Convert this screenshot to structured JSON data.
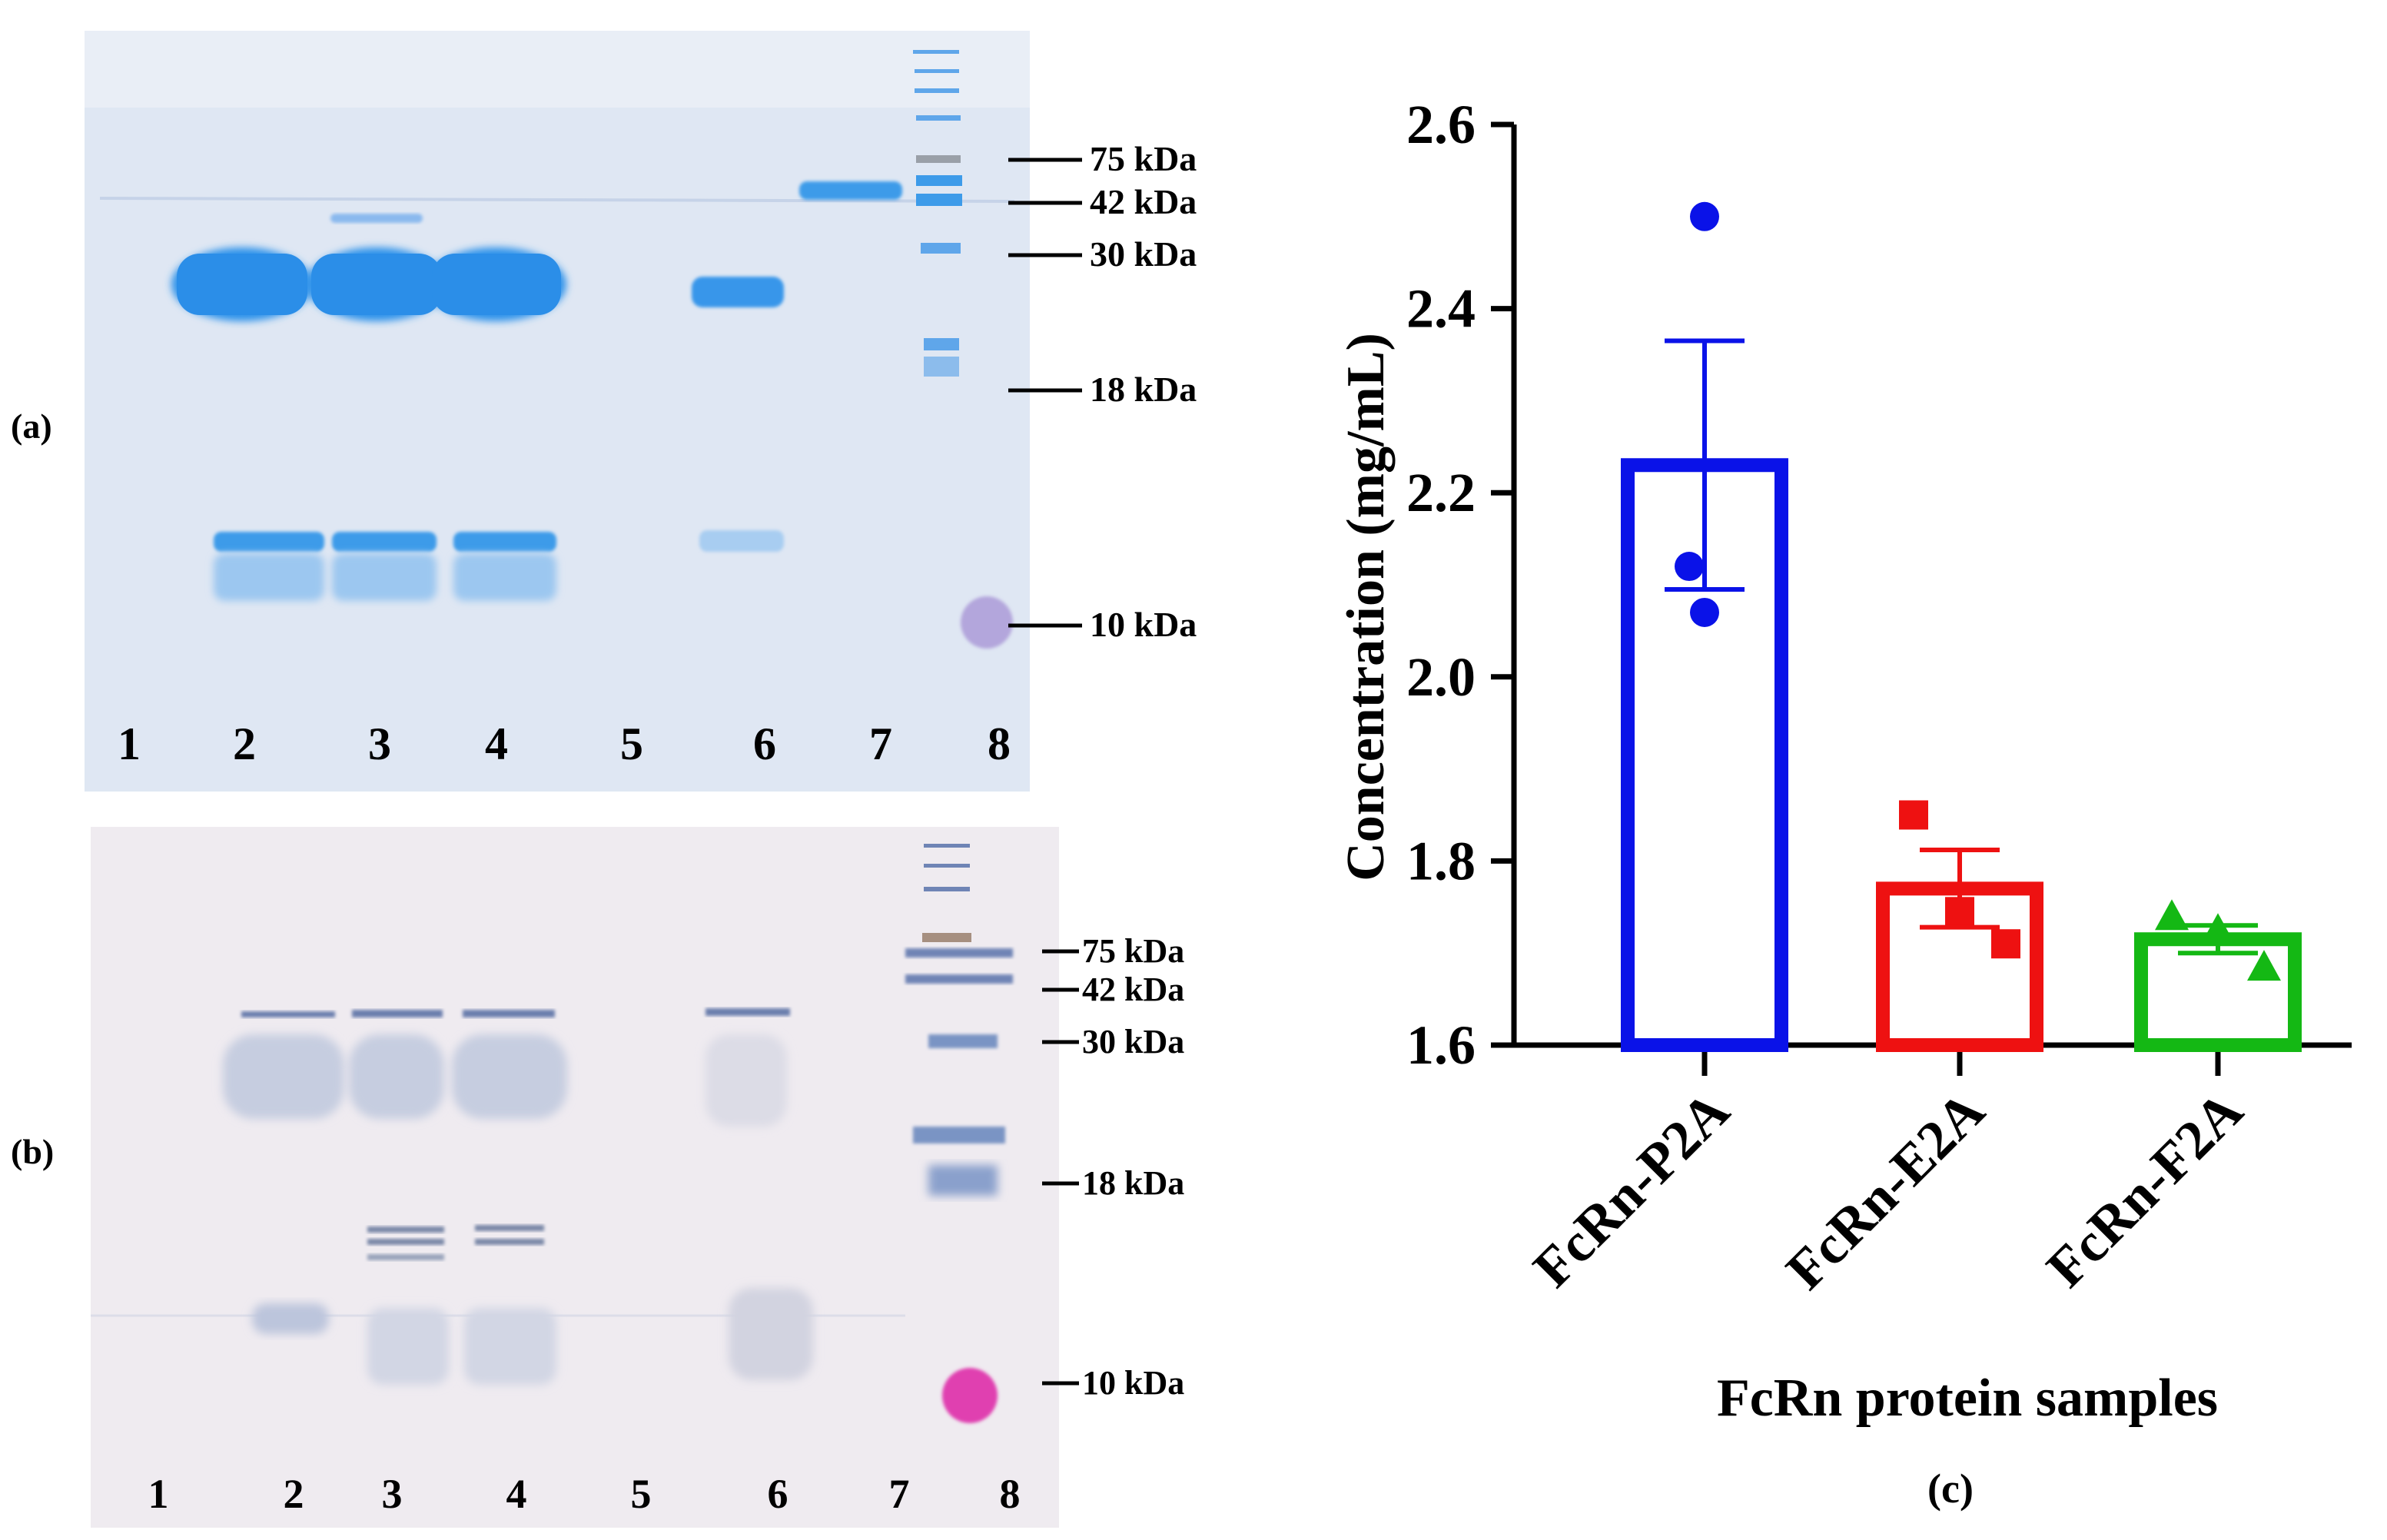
{
  "panel_a": {
    "tag": "(a)",
    "lanes": [
      "1",
      "2",
      "3",
      "4",
      "5",
      "6",
      "7",
      "8"
    ],
    "markers": [
      "75 kDa",
      "42 kDa",
      "30 kDa",
      "18 kDa",
      "10 kDa"
    ]
  },
  "panel_b": {
    "tag": "(b)",
    "lanes": [
      "1",
      "2",
      "3",
      "4",
      "5",
      "6",
      "7",
      "8"
    ],
    "markers": [
      "75 kDa",
      "42 kDa",
      "30 kDa",
      "18 kDa",
      "10 kDa"
    ]
  },
  "panel_c": {
    "tag": "(c)"
  },
  "colors": {
    "gel_a_bg": "#dfe7f3",
    "gel_b_bg": "#efebf0",
    "blue": "#0a12e8",
    "red": "#ee1111",
    "green": "#14b814"
  },
  "chart_data": {
    "type": "bar",
    "title": "",
    "xlabel": "FcRn protein samples",
    "ylabel": "Concentration (mg/mL)",
    "ylim": [
      1.6,
      2.6
    ],
    "yticks": [
      "1.6",
      "1.8",
      "2.0",
      "2.2",
      "2.4",
      "2.6"
    ],
    "categories": [
      "FcRn-P2A",
      "FcRn-E2A",
      "FcRn-F2A"
    ],
    "means": [
      2.23,
      1.77,
      1.715
    ],
    "sem": [
      0.135,
      0.042,
      0.015
    ],
    "points": [
      [
        2.5,
        2.12,
        2.07
      ],
      [
        1.85,
        1.745,
        1.71
      ],
      [
        1.74,
        1.725,
        1.685
      ]
    ],
    "markers": [
      "circle",
      "square",
      "triangle"
    ],
    "colors": [
      "#0a12e8",
      "#ee1111",
      "#14b814"
    ]
  }
}
